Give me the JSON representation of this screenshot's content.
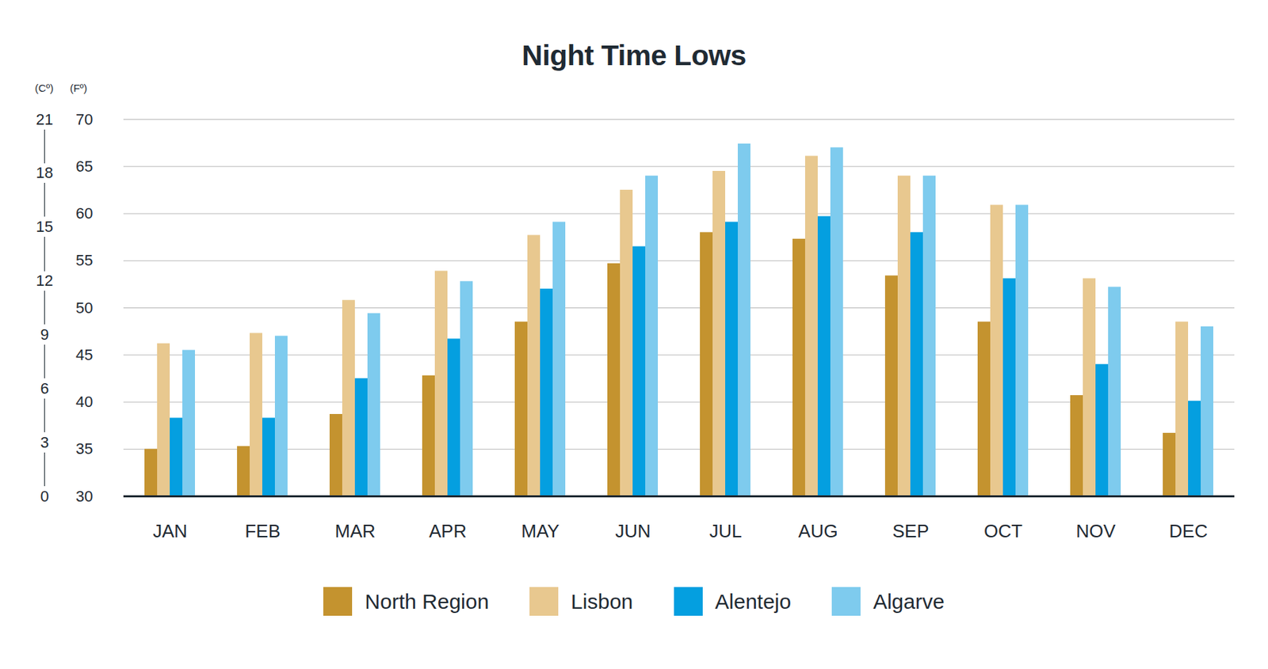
{
  "chart_data": {
    "type": "bar",
    "title": "Night Time Lows",
    "y_label": "(Fº)",
    "y2_label": "(Cº)",
    "categories": [
      "JAN",
      "FEB",
      "MAR",
      "APR",
      "MAY",
      "JUN",
      "JUL",
      "AUG",
      "SEP",
      "OCT",
      "NOV",
      "DEC"
    ],
    "series": [
      {
        "name": "North Region",
        "color": "#c4932f",
        "values": [
          35,
          35.3,
          38.7,
          42.8,
          48.5,
          54.7,
          58,
          57.3,
          53.4,
          48.5,
          40.7,
          36.7
        ]
      },
      {
        "name": "Lisbon",
        "color": "#e8c88f",
        "values": [
          46.2,
          47.3,
          50.8,
          53.9,
          57.7,
          62.5,
          64.5,
          66.1,
          64,
          60.9,
          53.1,
          48.5
        ]
      },
      {
        "name": "Alentejo",
        "color": "#049fe0",
        "values": [
          38.3,
          38.3,
          42.5,
          46.7,
          52,
          56.5,
          59.1,
          59.7,
          58,
          53.1,
          44,
          40.1
        ]
      },
      {
        "name": "Algarve",
        "color": "#7ecbee",
        "values": [
          45.5,
          47,
          49.4,
          52.8,
          59.1,
          64,
          67.4,
          67,
          64,
          60.9,
          52.2,
          48
        ]
      }
    ],
    "ylim": [
      30,
      70
    ],
    "yticks": [
      30,
      35,
      40,
      45,
      50,
      55,
      60,
      65,
      70
    ],
    "y2lim": [
      0,
      21
    ],
    "y2ticks": [
      0,
      3,
      6,
      9,
      12,
      15,
      18,
      21
    ],
    "grid": true,
    "legend": "bottom"
  }
}
